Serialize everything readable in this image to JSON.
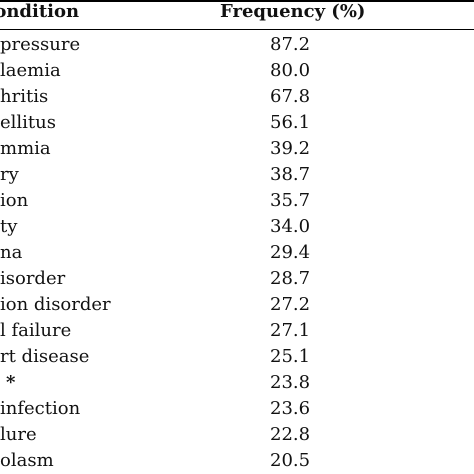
{
  "table": {
    "headers": {
      "condition": "Condition",
      "frequency": "Frequency (%)"
    },
    "rows": [
      {
        "condition": "pressure",
        "frequency": "87.2",
        "offset": "-4"
      },
      {
        "condition": "laemia",
        "frequency": "80.0",
        "offset": "-4"
      },
      {
        "condition": "hritis",
        "frequency": "67.8",
        "offset": "-4"
      },
      {
        "condition": "ellitus",
        "frequency": "56.1",
        "offset": "-4"
      },
      {
        "condition": "mmia",
        "frequency": "39.2",
        "offset": "-4"
      },
      {
        "condition": "ry",
        "frequency": "38.7",
        "offset": "-4"
      },
      {
        "condition": "ion",
        "frequency": "35.7",
        "offset": "-4"
      },
      {
        "condition": "ty",
        "frequency": "34.0",
        "offset": "-4"
      },
      {
        "condition": "na",
        "frequency": "29.4",
        "offset": "-4"
      },
      {
        "condition": "isorder",
        "frequency": "28.7",
        "offset": "-4"
      },
      {
        "condition": "ion disorder",
        "frequency": "27.2",
        "offset": "-4"
      },
      {
        "condition": "l failure",
        "frequency": "27.1",
        "offset": "-4"
      },
      {
        "condition": "rt disease",
        "frequency": "25.1",
        "offset": "-4"
      },
      {
        "condition": "*",
        "frequency": "23.8",
        "offset": "-4",
        "bold": true
      },
      {
        "condition": "infection",
        "frequency": "23.6",
        "offset": "-4"
      },
      {
        "condition": "lure",
        "frequency": "22.8",
        "offset": "-4"
      },
      {
        "condition": "olasm",
        "frequency": "20.5",
        "offset": "-4"
      }
    ]
  }
}
